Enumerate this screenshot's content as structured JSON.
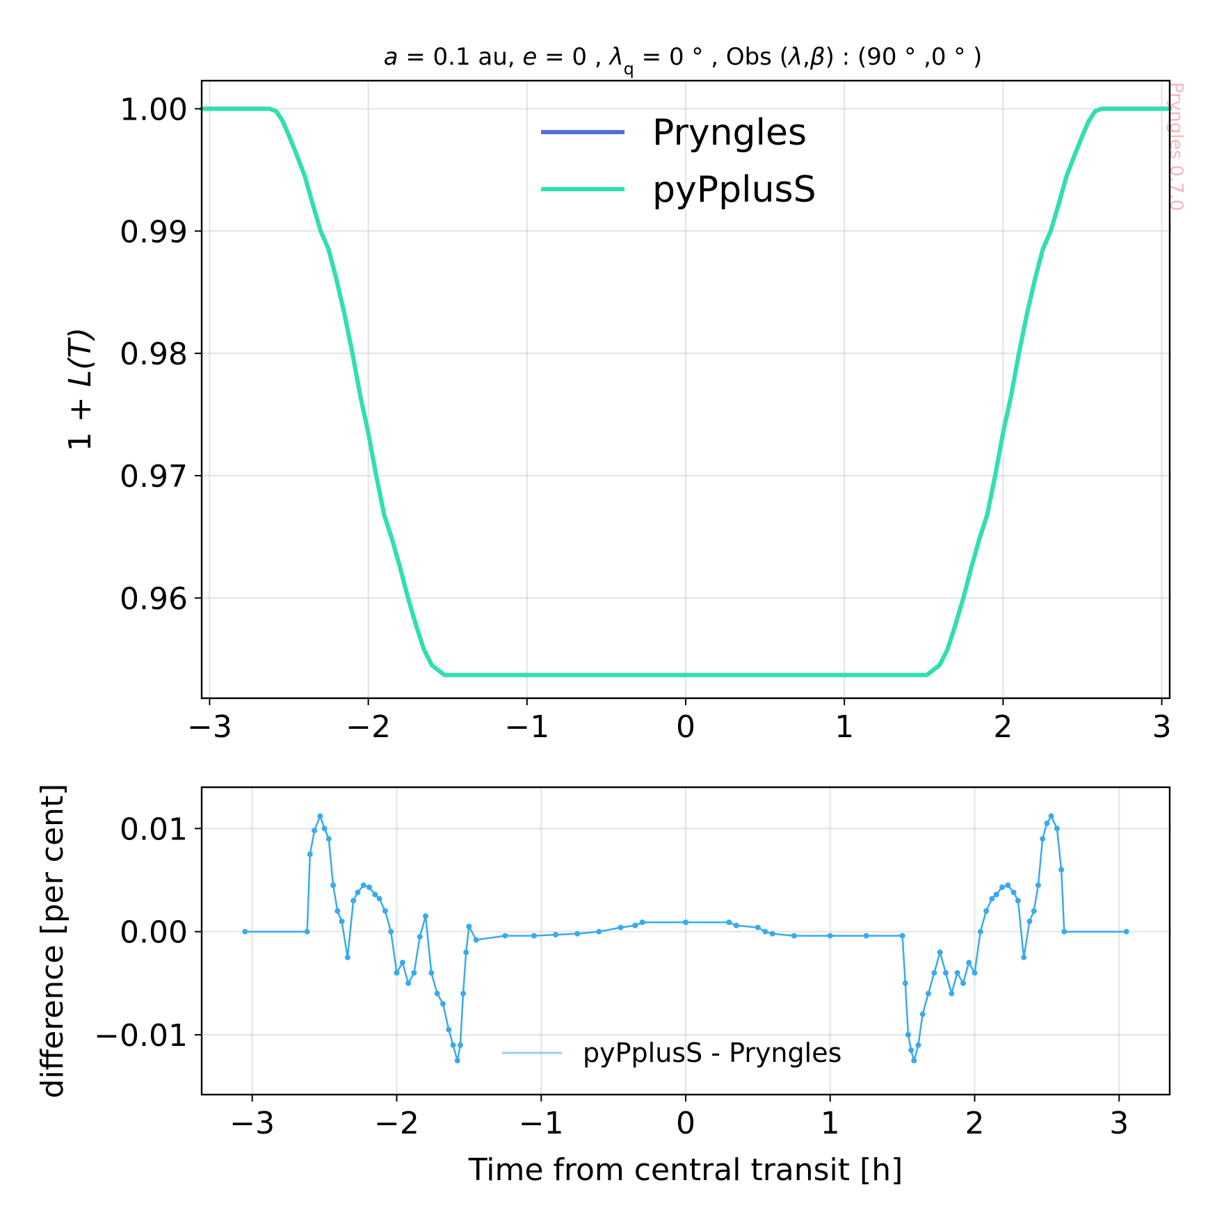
{
  "figure": {
    "title_parts": {
      "a_var": "a",
      "a_rest": " = 0.1 au,  ",
      "e_var": "e",
      "e_rest": " = 0 , ",
      "lambda": "λ",
      "lambda_sub": "q",
      "lambda_rest": " = 0 ° , Obs (",
      "obs_lambda": "λ",
      "comma": ",",
      "obs_beta": "β",
      "obs_rest": ") : (90 ° ,0 ° )"
    },
    "watermark": "Pryngles 0.7.0"
  },
  "chart_data": [
    {
      "type": "line",
      "ylabel_prefix": "1 + ",
      "ylabel_var": "L(T)",
      "xlabel": "",
      "xlim": [
        -3.05,
        3.05
      ],
      "ylim": [
        0.9518,
        1.0023
      ],
      "xticks": [
        -3,
        -2,
        -1,
        0,
        1,
        2,
        3
      ],
      "xtick_labels": [
        "−3",
        "−2",
        "−1",
        "0",
        "1",
        "2",
        "3"
      ],
      "yticks": [
        0.96,
        0.97,
        0.98,
        0.99,
        1.0
      ],
      "ytick_labels": [
        "0.96",
        "0.97",
        "0.98",
        "0.99",
        "1.00"
      ],
      "grid": true,
      "legend": "upper center",
      "series": [
        {
          "name": "Pryngles",
          "color": "#5470d6",
          "x": [
            -3.05,
            -2.62,
            -2.58,
            -2.54,
            -2.5,
            -2.45,
            -2.4,
            -2.35,
            -2.3,
            -2.25,
            -2.2,
            -2.15,
            -2.1,
            -2.05,
            -2.0,
            -1.95,
            -1.9,
            -1.85,
            -1.8,
            -1.75,
            -1.7,
            -1.65,
            -1.6,
            -1.55,
            -1.52,
            -1.5,
            1.5,
            1.52,
            1.55,
            1.6,
            1.65,
            1.7,
            1.75,
            1.8,
            1.85,
            1.9,
            1.95,
            2.0,
            2.05,
            2.1,
            2.15,
            2.2,
            2.25,
            2.3,
            2.35,
            2.4,
            2.45,
            2.5,
            2.54,
            2.58,
            2.62,
            3.05
          ],
          "y": [
            1.0,
            1.0,
            0.9998,
            0.999,
            0.9978,
            0.9962,
            0.9945,
            0.9922,
            0.99,
            0.9885,
            0.986,
            0.9832,
            0.98,
            0.9765,
            0.9735,
            0.97,
            0.9668,
            0.9648,
            0.9625,
            0.96,
            0.9578,
            0.9558,
            0.9545,
            0.954,
            0.9537,
            0.9537,
            0.9537,
            0.9537,
            0.954,
            0.9545,
            0.9558,
            0.9578,
            0.96,
            0.9625,
            0.9648,
            0.9668,
            0.97,
            0.9735,
            0.9765,
            0.98,
            0.9832,
            0.986,
            0.9885,
            0.99,
            0.9922,
            0.9945,
            0.9962,
            0.9978,
            0.999,
            0.9998,
            1.0,
            1.0
          ]
        },
        {
          "name": "pyPplusS",
          "color": "#2fe0b0",
          "x": [
            -3.05,
            -2.62,
            -2.58,
            -2.54,
            -2.5,
            -2.45,
            -2.4,
            -2.35,
            -2.3,
            -2.25,
            -2.2,
            -2.15,
            -2.1,
            -2.05,
            -2.0,
            -1.95,
            -1.9,
            -1.85,
            -1.8,
            -1.75,
            -1.7,
            -1.65,
            -1.6,
            -1.55,
            -1.52,
            -1.5,
            1.5,
            1.52,
            1.55,
            1.6,
            1.65,
            1.7,
            1.75,
            1.8,
            1.85,
            1.9,
            1.95,
            2.0,
            2.05,
            2.1,
            2.15,
            2.2,
            2.25,
            2.3,
            2.35,
            2.4,
            2.45,
            2.5,
            2.54,
            2.58,
            2.62,
            3.05
          ],
          "y": [
            1.0,
            1.0,
            0.9998,
            0.999,
            0.9978,
            0.9962,
            0.9945,
            0.9922,
            0.99,
            0.9885,
            0.986,
            0.9832,
            0.98,
            0.9765,
            0.9735,
            0.97,
            0.9668,
            0.9648,
            0.9625,
            0.96,
            0.9578,
            0.9558,
            0.9545,
            0.954,
            0.9537,
            0.9537,
            0.9537,
            0.9537,
            0.954,
            0.9545,
            0.9558,
            0.9578,
            0.96,
            0.9625,
            0.9648,
            0.9668,
            0.97,
            0.9735,
            0.9765,
            0.98,
            0.9832,
            0.986,
            0.9885,
            0.99,
            0.9922,
            0.9945,
            0.9962,
            0.9978,
            0.999,
            0.9998,
            1.0,
            1.0
          ]
        }
      ]
    },
    {
      "type": "line",
      "xlabel": "Time from central transit [h]",
      "ylabel": "difference [per cent]",
      "xlim": [
        -3.35,
        3.35
      ],
      "ylim": [
        -0.0158,
        0.014
      ],
      "xticks": [
        -3,
        -2,
        -1,
        0,
        1,
        2,
        3
      ],
      "xtick_labels": [
        "−3",
        "−2",
        "−1",
        "0",
        "1",
        "2",
        "3"
      ],
      "yticks": [
        -0.01,
        0.0,
        0.01
      ],
      "ytick_labels": [
        "−0.01",
        "0.00",
        "0.01"
      ],
      "grid": true,
      "legend": "lower center",
      "series": [
        {
          "name": "pyPplusS - Pryngles",
          "color": "#38aaee",
          "x": [
            -3.05,
            -2.62,
            -2.6,
            -2.57,
            -2.53,
            -2.5,
            -2.47,
            -2.44,
            -2.41,
            -2.38,
            -2.34,
            -2.3,
            -2.27,
            -2.23,
            -2.19,
            -2.15,
            -2.12,
            -2.08,
            -2.04,
            -2.0,
            -1.96,
            -1.92,
            -1.88,
            -1.84,
            -1.8,
            -1.76,
            -1.72,
            -1.68,
            -1.64,
            -1.61,
            -1.58,
            -1.56,
            -1.54,
            -1.52,
            -1.5,
            -1.45,
            -1.25,
            -1.05,
            -0.9,
            -0.75,
            -0.6,
            -0.45,
            -0.35,
            -0.3,
            0.0,
            0.3,
            0.35,
            0.5,
            0.55,
            0.6,
            0.75,
            1.0,
            1.25,
            1.5,
            1.52,
            1.54,
            1.56,
            1.58,
            1.61,
            1.64,
            1.68,
            1.72,
            1.76,
            1.8,
            1.84,
            1.88,
            1.92,
            1.96,
            2.0,
            2.04,
            2.08,
            2.12,
            2.15,
            2.19,
            2.23,
            2.27,
            2.3,
            2.34,
            2.38,
            2.41,
            2.44,
            2.47,
            2.5,
            2.53,
            2.57,
            2.6,
            2.62,
            3.05
          ],
          "y": [
            0.0,
            0.0,
            0.0075,
            0.0098,
            0.0112,
            0.01,
            0.009,
            0.0045,
            0.002,
            0.001,
            -0.0025,
            0.003,
            0.0038,
            0.0045,
            0.0043,
            0.0036,
            0.0032,
            0.002,
            0.0,
            -0.004,
            -0.003,
            -0.005,
            -0.004,
            -0.0005,
            0.0015,
            -0.004,
            -0.006,
            -0.007,
            -0.0095,
            -0.011,
            -0.0125,
            -0.011,
            -0.006,
            -0.002,
            0.0005,
            -0.0008,
            -0.0004,
            -0.0004,
            -0.0003,
            -0.0002,
            0.0,
            0.0004,
            0.0006,
            0.0009,
            0.0009,
            0.0009,
            0.0006,
            0.0004,
            0.0,
            -0.0002,
            -0.0004,
            -0.0004,
            -0.0004,
            -0.0004,
            -0.005,
            -0.01,
            -0.0115,
            -0.0125,
            -0.011,
            -0.008,
            -0.006,
            -0.004,
            -0.002,
            -0.004,
            -0.006,
            -0.004,
            -0.005,
            -0.003,
            -0.004,
            0.0,
            0.002,
            0.0032,
            0.0036,
            0.0043,
            0.0045,
            0.0038,
            0.003,
            -0.0025,
            0.001,
            0.002,
            0.0045,
            0.009,
            0.0105,
            0.0112,
            0.01,
            0.006,
            0.0,
            0.0
          ]
        }
      ]
    }
  ]
}
